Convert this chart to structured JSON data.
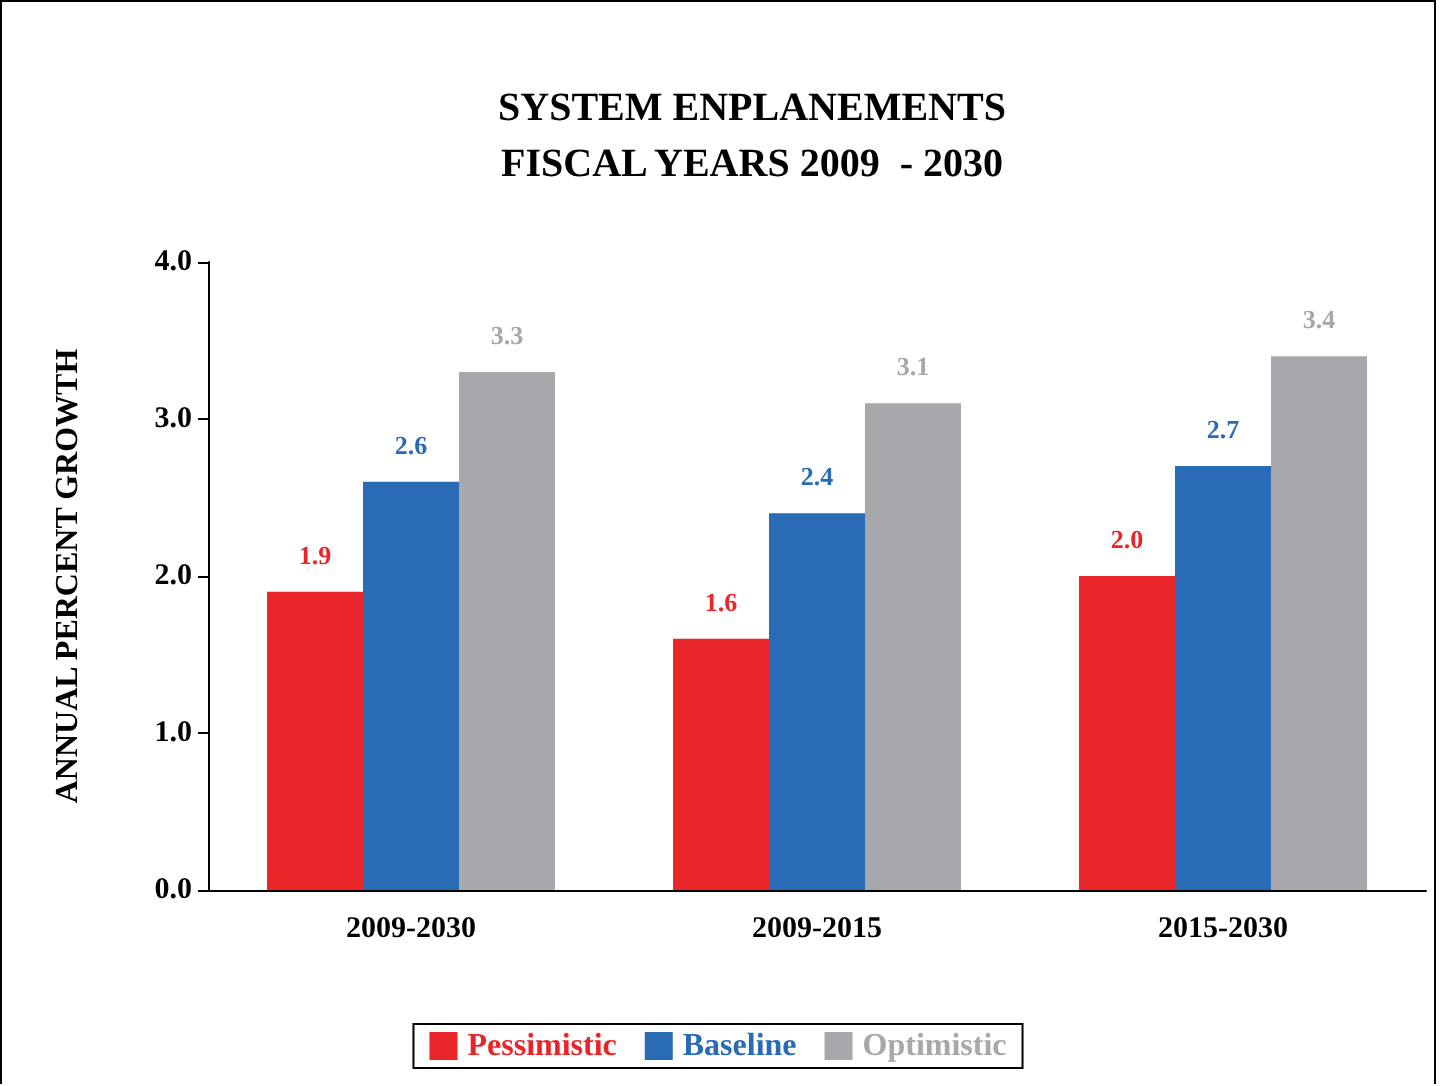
{
  "chart_data": {
    "type": "bar",
    "title": "SYSTEM ENPLANEMENTS\nFISCAL YEARS 2009  - 2030",
    "ylabel": "ANNUAL PERCENT GROWTH",
    "categories": [
      "2009-2030",
      "2009-2015",
      "2015-2030"
    ],
    "series": [
      {
        "name": "Pessimistic",
        "color": "#e8262a",
        "values": [
          1.9,
          1.6,
          2.0
        ],
        "value_labels": [
          "1.9",
          "1.6",
          "2.0"
        ]
      },
      {
        "name": "Baseline",
        "color": "#2a6bb5",
        "values": [
          2.6,
          2.4,
          2.7
        ],
        "value_labels": [
          "2.6",
          "2.4",
          "2.7"
        ]
      },
      {
        "name": "Optimistic",
        "color": "#a7a8ab",
        "values": [
          3.3,
          3.1,
          3.4
        ],
        "value_labels": [
          "3.3",
          "3.1",
          "3.4"
        ]
      }
    ],
    "ylim": [
      0,
      4
    ],
    "yticks": [
      {
        "value": 0,
        "label": "0.0"
      },
      {
        "value": 1,
        "label": "1.0"
      },
      {
        "value": 2,
        "label": "2.0"
      },
      {
        "value": 3,
        "label": "3.0"
      },
      {
        "value": 4,
        "label": "4.0"
      }
    ],
    "grid": false,
    "legend": "bottom"
  }
}
